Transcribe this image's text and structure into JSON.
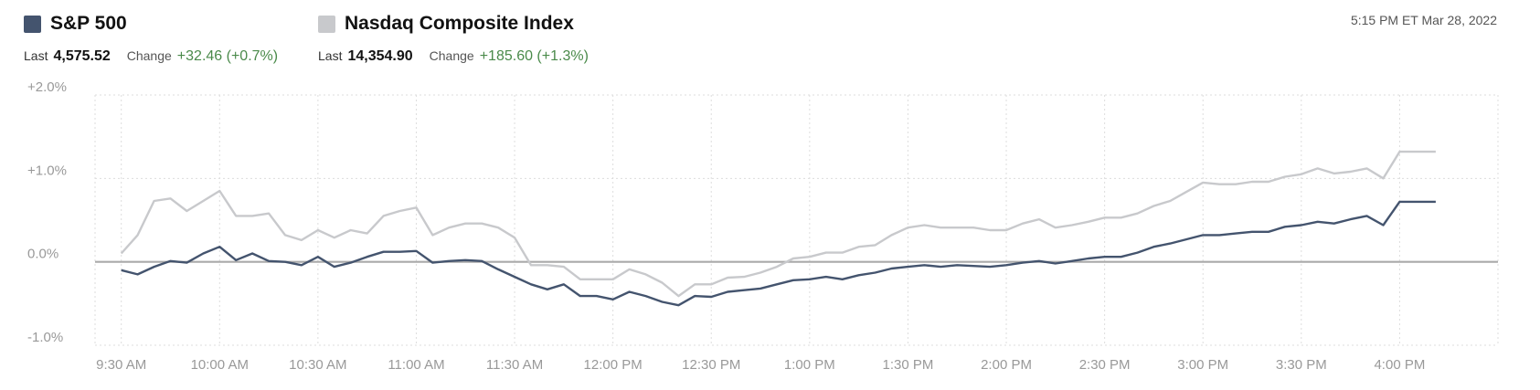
{
  "chart_data": {
    "type": "line",
    "timestamp": "5:15 PM ET Mar 28, 2022",
    "last_label": "Last",
    "change_label": "Change",
    "x": [
      570,
      575,
      580,
      585,
      590,
      595,
      600,
      605,
      610,
      615,
      620,
      625,
      630,
      635,
      640,
      645,
      650,
      655,
      660,
      665,
      670,
      675,
      680,
      685,
      690,
      695,
      700,
      705,
      710,
      715,
      720,
      725,
      730,
      735,
      740,
      745,
      750,
      755,
      760,
      765,
      770,
      775,
      780,
      785,
      790,
      795,
      800,
      805,
      810,
      815,
      820,
      825,
      830,
      835,
      840,
      845,
      850,
      855,
      860,
      865,
      870,
      875,
      880,
      885,
      890,
      895,
      900,
      905,
      910,
      915,
      920,
      925,
      930,
      935,
      940,
      945,
      950,
      955,
      960,
      971
    ],
    "xlim": [
      562,
      990
    ],
    "xticks": [
      {
        "value": 570,
        "label": "9:30 AM"
      },
      {
        "value": 600,
        "label": "10:00 AM"
      },
      {
        "value": 630,
        "label": "10:30 AM"
      },
      {
        "value": 660,
        "label": "11:00 AM"
      },
      {
        "value": 690,
        "label": "11:30 AM"
      },
      {
        "value": 720,
        "label": "12:00 PM"
      },
      {
        "value": 750,
        "label": "12:30 PM"
      },
      {
        "value": 780,
        "label": "1:00 PM"
      },
      {
        "value": 810,
        "label": "1:30 PM"
      },
      {
        "value": 840,
        "label": "2:00 PM"
      },
      {
        "value": 870,
        "label": "2:30 PM"
      },
      {
        "value": 900,
        "label": "3:00 PM"
      },
      {
        "value": 930,
        "label": "3:30 PM"
      },
      {
        "value": 960,
        "label": "4:00 PM"
      }
    ],
    "ylim": [
      -1,
      2
    ],
    "yticks": [
      {
        "value": 2,
        "label": "+2.0%"
      },
      {
        "value": 1,
        "label": "+1.0%"
      },
      {
        "value": 0,
        "label": "0.0%"
      },
      {
        "value": -1,
        "label": "-1.0%"
      }
    ],
    "grid": true,
    "series": [
      {
        "name": "S&P 500",
        "color": "#44546e",
        "last": "4,575.52",
        "change": "+32.46 (+0.7%)",
        "values": [
          -0.1,
          -0.15,
          -0.06,
          0.01,
          -0.01,
          0.1,
          0.18,
          0.02,
          0.1,
          0.01,
          0.0,
          -0.04,
          0.06,
          -0.06,
          -0.01,
          0.06,
          0.12,
          0.12,
          0.13,
          -0.01,
          0.01,
          0.02,
          0.01,
          -0.09,
          -0.18,
          -0.27,
          -0.33,
          -0.27,
          -0.41,
          -0.41,
          -0.45,
          -0.36,
          -0.41,
          -0.48,
          -0.52,
          -0.41,
          -0.42,
          -0.36,
          -0.34,
          -0.32,
          -0.27,
          -0.22,
          -0.21,
          -0.18,
          -0.21,
          -0.16,
          -0.13,
          -0.08,
          -0.06,
          -0.04,
          -0.06,
          -0.04,
          -0.05,
          -0.06,
          -0.04,
          -0.01,
          0.01,
          -0.02,
          0.01,
          0.04,
          0.06,
          0.06,
          0.11,
          0.18,
          0.22,
          0.27,
          0.32,
          0.32,
          0.34,
          0.36,
          0.36,
          0.42,
          0.44,
          0.48,
          0.46,
          0.51,
          0.55,
          0.44,
          0.72,
          0.72
        ]
      },
      {
        "name": "Nasdaq Composite Index",
        "color": "#c8c9cc",
        "last": "14,354.90",
        "change": "+185.60 (+1.3%)",
        "values": [
          0.1,
          0.32,
          0.73,
          0.76,
          0.61,
          0.73,
          0.85,
          0.55,
          0.55,
          0.58,
          0.32,
          0.26,
          0.38,
          0.29,
          0.38,
          0.34,
          0.55,
          0.61,
          0.65,
          0.32,
          0.41,
          0.46,
          0.46,
          0.41,
          0.29,
          -0.04,
          -0.04,
          -0.06,
          -0.21,
          -0.21,
          -0.21,
          -0.09,
          -0.15,
          -0.25,
          -0.41,
          -0.27,
          -0.27,
          -0.19,
          -0.18,
          -0.13,
          -0.06,
          0.04,
          0.06,
          0.11,
          0.11,
          0.18,
          0.2,
          0.32,
          0.41,
          0.44,
          0.41,
          0.41,
          0.41,
          0.38,
          0.38,
          0.46,
          0.51,
          0.41,
          0.44,
          0.48,
          0.53,
          0.53,
          0.58,
          0.67,
          0.73,
          0.84,
          0.95,
          0.93,
          0.93,
          0.96,
          0.96,
          1.02,
          1.05,
          1.12,
          1.06,
          1.08,
          1.12,
          1.0,
          1.32,
          1.32
        ]
      }
    ]
  }
}
